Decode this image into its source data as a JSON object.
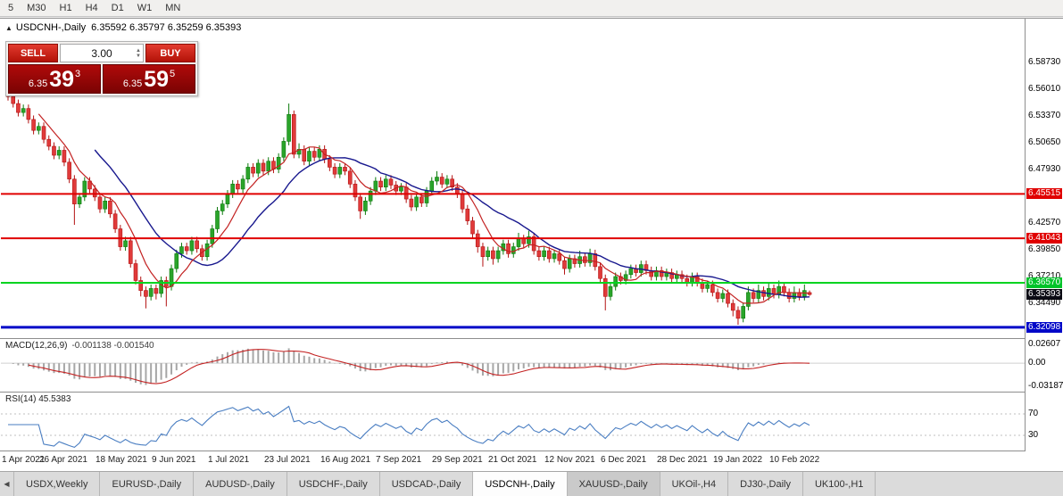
{
  "toolbar": {
    "timeframes": [
      "5",
      "M30",
      "H1",
      "H4",
      "D1",
      "W1",
      "MN"
    ]
  },
  "chart_header": {
    "expand_icon": "▲",
    "symbol": "USDCNH-,Daily",
    "ohlc": "6.35592 6.35797 6.35259 6.35393"
  },
  "trade_panel": {
    "sell_button": "SELL",
    "buy_button": "BUY",
    "volume": "3.00",
    "sell_price_small": "6.35",
    "sell_price_big": "39",
    "sell_price_sup": "3",
    "buy_price_small": "6.35",
    "buy_price_big": "59",
    "buy_price_sup": "5"
  },
  "tabs": [
    {
      "label": "USDX,Weekly",
      "state": "normal"
    },
    {
      "label": "EURUSD-,Daily",
      "state": "normal"
    },
    {
      "label": "AUDUSD-,Daily",
      "state": "normal"
    },
    {
      "label": "USDCHF-,Daily",
      "state": "normal"
    },
    {
      "label": "USDCAD-,Daily",
      "state": "normal"
    },
    {
      "label": "USDCNH-,Daily",
      "state": "active"
    },
    {
      "label": "XAUUSD-,Daily",
      "state": "shaded"
    },
    {
      "label": "UKOil-,H4",
      "state": "normal"
    },
    {
      "label": "DJ30-,Daily",
      "state": "normal"
    },
    {
      "label": "UK100-,H1",
      "state": "normal"
    }
  ],
  "chart_data": {
    "type": "candlestick",
    "symbol": "USDCNH",
    "period": "Daily",
    "display_ohlc": {
      "open": "6.35592",
      "high": "6.35797",
      "low": "6.35259",
      "close": "6.35393"
    },
    "y_range": [
      6.311,
      6.6304
    ],
    "candle_colors": {
      "up": "#2aa42a",
      "up_border": "#0b7a0b",
      "down": "#e03a3a",
      "down_border": "#b31212"
    },
    "ma_colors": {
      "fast": "#c32222",
      "slow": "#18188e"
    },
    "price_axis": [
      {
        "text": "6.58730",
        "style": "plain"
      },
      {
        "text": "6.56010",
        "style": "plain"
      },
      {
        "text": "6.53370",
        "style": "plain"
      },
      {
        "text": "6.50650",
        "style": "plain"
      },
      {
        "text": "6.47930",
        "style": "plain"
      },
      {
        "text": "6.45515",
        "style": "red"
      },
      {
        "text": "6.42570",
        "style": "plain"
      },
      {
        "text": "6.41043",
        "style": "red"
      },
      {
        "text": "6.39850",
        "style": "plain"
      },
      {
        "text": "6.37210",
        "style": "plain"
      },
      {
        "text": "6.36570",
        "style": "green"
      },
      {
        "text": "6.35393",
        "style": "current"
      },
      {
        "text": "6.34490",
        "style": "plain"
      },
      {
        "text": "6.32098",
        "style": "blue"
      }
    ],
    "levels": [
      {
        "price": 6.45515,
        "color": "#e00000",
        "width": 2
      },
      {
        "price": 6.41043,
        "color": "#e00000",
        "width": 2
      },
      {
        "price": 6.3657,
        "color": "#00d41f",
        "width": 2
      },
      {
        "price": 6.32098,
        "color": "#0008c8",
        "width": 3
      }
    ],
    "date_labels": [
      {
        "i": 0,
        "text": "1 Apr 2021"
      },
      {
        "i": 11,
        "text": "26 Apr 2021"
      },
      {
        "i": 22,
        "text": "18 May 2021"
      },
      {
        "i": 33,
        "text": "9 Jun 2021"
      },
      {
        "i": 44,
        "text": "1 Jul 2021"
      },
      {
        "i": 55,
        "text": "23 Jul 2021"
      },
      {
        "i": 66,
        "text": "16 Aug 2021"
      },
      {
        "i": 77,
        "text": "7 Sep 2021"
      },
      {
        "i": 88,
        "text": "29 Sep 2021"
      },
      {
        "i": 99,
        "text": "21 Oct 2021"
      },
      {
        "i": 110,
        "text": "12 Nov 2021"
      },
      {
        "i": 121,
        "text": "6 Dec 2021"
      },
      {
        "i": 132,
        "text": "28 Dec 2021"
      },
      {
        "i": 143,
        "text": "19 Jan 2022"
      },
      {
        "i": 154,
        "text": "10 Feb 2022"
      }
    ],
    "indicators": {
      "macd": {
        "label": "MACD(12,26,9)",
        "values": "-0.001138 -0.001540",
        "axis": [
          {
            "text": "0.02607",
            "v": 0.02607
          },
          {
            "text": "0.00",
            "v": 0
          },
          {
            "text": "-0.03187",
            "v": -0.03187
          }
        ],
        "range": [
          -0.038,
          0.0335
        ],
        "histogram_color": "#a6a6a6",
        "signal_color": "#c32222"
      },
      "rsi": {
        "label": "RSI(14) 45.5383",
        "axis": [
          {
            "text": "70",
            "v": 70
          },
          {
            "text": "30",
            "v": 30
          }
        ],
        "levels": [
          70,
          30
        ],
        "line_color": "#4a7ec2"
      }
    },
    "candles": [
      [
        6.558,
        6.566,
        6.549,
        6.553
      ],
      [
        6.553,
        6.557,
        6.542,
        6.546
      ],
      [
        6.546,
        6.55,
        6.533,
        6.537
      ],
      [
        6.537,
        6.545,
        6.533,
        6.541
      ],
      [
        6.541,
        6.545,
        6.526,
        6.53
      ],
      [
        6.53,
        6.534,
        6.515,
        6.519
      ],
      [
        6.519,
        6.527,
        6.515,
        6.523
      ],
      [
        6.523,
        6.527,
        6.506,
        6.51
      ],
      [
        6.51,
        6.514,
        6.499,
        6.503
      ],
      [
        6.503,
        6.507,
        6.49,
        6.494
      ],
      [
        6.494,
        6.503,
        6.49,
        6.499
      ],
      [
        6.499,
        6.503,
        6.483,
        6.487
      ],
      [
        6.487,
        6.491,
        6.466,
        6.47
      ],
      [
        6.47,
        6.474,
        6.424,
        6.445
      ],
      [
        6.445,
        6.456,
        6.441,
        6.452
      ],
      [
        6.452,
        6.472,
        6.448,
        6.468
      ],
      [
        6.468,
        6.472,
        6.456,
        6.46
      ],
      [
        6.46,
        6.464,
        6.448,
        6.452
      ],
      [
        6.452,
        6.456,
        6.436,
        6.44
      ],
      [
        6.44,
        6.452,
        6.436,
        6.448
      ],
      [
        6.448,
        6.452,
        6.431,
        6.435
      ],
      [
        6.435,
        6.439,
        6.416,
        6.42
      ],
      [
        6.42,
        6.424,
        6.398,
        6.402
      ],
      [
        6.402,
        6.412,
        6.398,
        6.408
      ],
      [
        6.408,
        6.412,
        6.381,
        6.385
      ],
      [
        6.385,
        6.389,
        6.364,
        6.368
      ],
      [
        6.368,
        6.372,
        6.352,
        6.358
      ],
      [
        6.358,
        6.362,
        6.34,
        6.352
      ],
      [
        6.352,
        6.364,
        6.348,
        6.36
      ],
      [
        6.36,
        6.364,
        6.349,
        6.355
      ],
      [
        6.355,
        6.372,
        6.351,
        6.368
      ],
      [
        6.368,
        6.372,
        6.342,
        6.362
      ],
      [
        6.362,
        6.384,
        6.358,
        6.38
      ],
      [
        6.38,
        6.399,
        6.376,
        6.395
      ],
      [
        6.395,
        6.406,
        6.391,
        6.402
      ],
      [
        6.402,
        6.406,
        6.394,
        6.398
      ],
      [
        6.398,
        6.412,
        6.394,
        6.408
      ],
      [
        6.408,
        6.412,
        6.396,
        6.4
      ],
      [
        6.4,
        6.404,
        6.388,
        6.392
      ],
      [
        6.392,
        6.409,
        6.388,
        6.405
      ],
      [
        6.405,
        6.424,
        6.401,
        6.42
      ],
      [
        6.42,
        6.442,
        6.416,
        6.438
      ],
      [
        6.438,
        6.449,
        6.434,
        6.445
      ],
      [
        6.445,
        6.459,
        6.441,
        6.455
      ],
      [
        6.455,
        6.469,
        6.451,
        6.465
      ],
      [
        6.465,
        6.469,
        6.456,
        6.46
      ],
      [
        6.46,
        6.474,
        6.456,
        6.47
      ],
      [
        6.47,
        6.486,
        6.466,
        6.482
      ],
      [
        6.482,
        6.486,
        6.472,
        6.476
      ],
      [
        6.476,
        6.49,
        6.472,
        6.486
      ],
      [
        6.486,
        6.49,
        6.474,
        6.478
      ],
      [
        6.478,
        6.492,
        6.474,
        6.488
      ],
      [
        6.488,
        6.492,
        6.476,
        6.48
      ],
      [
        6.48,
        6.496,
        6.476,
        6.492
      ],
      [
        6.492,
        6.512,
        6.488,
        6.508
      ],
      [
        6.508,
        6.546,
        6.504,
        6.535
      ],
      [
        6.535,
        6.539,
        6.491,
        6.495
      ],
      [
        6.495,
        6.506,
        6.491,
        6.5
      ],
      [
        6.5,
        6.504,
        6.484,
        6.488
      ],
      [
        6.488,
        6.502,
        6.484,
        6.498
      ],
      [
        6.498,
        6.502,
        6.488,
        6.492
      ],
      [
        6.492,
        6.504,
        6.488,
        6.5
      ],
      [
        6.5,
        6.504,
        6.486,
        6.49
      ],
      [
        6.49,
        6.494,
        6.478,
        6.482
      ],
      [
        6.482,
        6.486,
        6.471,
        6.475
      ],
      [
        6.475,
        6.486,
        6.471,
        6.482
      ],
      [
        6.482,
        6.486,
        6.474,
        6.478
      ],
      [
        6.478,
        6.482,
        6.461,
        6.465
      ],
      [
        6.465,
        6.469,
        6.448,
        6.452
      ],
      [
        6.452,
        6.456,
        6.43,
        6.438
      ],
      [
        6.438,
        6.452,
        6.434,
        6.448
      ],
      [
        6.448,
        6.462,
        6.444,
        6.458
      ],
      [
        6.458,
        6.472,
        6.454,
        6.468
      ],
      [
        6.468,
        6.472,
        6.458,
        6.462
      ],
      [
        6.462,
        6.474,
        6.458,
        6.47
      ],
      [
        6.47,
        6.474,
        6.46,
        6.464
      ],
      [
        6.464,
        6.468,
        6.454,
        6.458
      ],
      [
        6.458,
        6.466,
        6.454,
        6.462
      ],
      [
        6.462,
        6.466,
        6.446,
        6.45
      ],
      [
        6.45,
        6.454,
        6.438,
        6.442
      ],
      [
        6.442,
        6.456,
        6.438,
        6.452
      ],
      [
        6.452,
        6.456,
        6.442,
        6.446
      ],
      [
        6.446,
        6.462,
        6.442,
        6.458
      ],
      [
        6.458,
        6.472,
        6.454,
        6.468
      ],
      [
        6.468,
        6.478,
        6.464,
        6.472
      ],
      [
        6.472,
        6.476,
        6.461,
        6.465
      ],
      [
        6.465,
        6.474,
        6.461,
        6.47
      ],
      [
        6.47,
        6.474,
        6.458,
        6.462
      ],
      [
        6.462,
        6.466,
        6.451,
        6.455
      ],
      [
        6.455,
        6.459,
        6.436,
        6.44
      ],
      [
        6.44,
        6.444,
        6.424,
        6.428
      ],
      [
        6.428,
        6.432,
        6.411,
        6.415
      ],
      [
        6.415,
        6.419,
        6.396,
        6.402
      ],
      [
        6.402,
        6.406,
        6.382,
        6.392
      ],
      [
        6.392,
        6.402,
        6.388,
        6.398
      ],
      [
        6.398,
        6.402,
        6.384,
        6.39
      ],
      [
        6.39,
        6.402,
        6.386,
        6.398
      ],
      [
        6.398,
        6.409,
        6.394,
        6.405
      ],
      [
        6.405,
        6.409,
        6.391,
        6.395
      ],
      [
        6.395,
        6.406,
        6.391,
        6.402
      ],
      [
        6.402,
        6.416,
        6.398,
        6.41
      ],
      [
        6.41,
        6.414,
        6.401,
        6.405
      ],
      [
        6.405,
        6.418,
        6.401,
        6.412
      ],
      [
        6.412,
        6.416,
        6.394,
        6.398
      ],
      [
        6.398,
        6.402,
        6.388,
        6.392
      ],
      [
        6.392,
        6.402,
        6.388,
        6.398
      ],
      [
        6.398,
        6.402,
        6.386,
        6.39
      ],
      [
        6.39,
        6.399,
        6.386,
        6.395
      ],
      [
        6.395,
        6.399,
        6.384,
        6.388
      ],
      [
        6.388,
        6.392,
        6.374,
        6.38
      ],
      [
        6.38,
        6.394,
        6.376,
        6.39
      ],
      [
        6.39,
        6.394,
        6.381,
        6.385
      ],
      [
        6.385,
        6.398,
        6.381,
        6.392
      ],
      [
        6.392,
        6.396,
        6.382,
        6.386
      ],
      [
        6.386,
        6.4,
        6.382,
        6.395
      ],
      [
        6.395,
        6.399,
        6.378,
        6.382
      ],
      [
        6.382,
        6.386,
        6.366,
        6.37
      ],
      [
        6.37,
        6.374,
        6.338,
        6.352
      ],
      [
        6.352,
        6.366,
        6.348,
        6.362
      ],
      [
        6.362,
        6.376,
        6.358,
        6.372
      ],
      [
        6.372,
        6.376,
        6.364,
        6.368
      ],
      [
        6.368,
        6.378,
        6.364,
        6.374
      ],
      [
        6.374,
        6.384,
        6.37,
        6.38
      ],
      [
        6.38,
        6.384,
        6.372,
        6.376
      ],
      [
        6.376,
        6.388,
        6.372,
        6.384
      ],
      [
        6.384,
        6.388,
        6.374,
        6.378
      ],
      [
        6.378,
        6.382,
        6.368,
        6.372
      ],
      [
        6.372,
        6.382,
        6.368,
        6.378
      ],
      [
        6.378,
        6.382,
        6.368,
        6.372
      ],
      [
        6.372,
        6.38,
        6.368,
        6.376
      ],
      [
        6.376,
        6.38,
        6.366,
        6.37
      ],
      [
        6.37,
        6.378,
        6.366,
        6.374
      ],
      [
        6.374,
        6.378,
        6.366,
        6.37
      ],
      [
        6.37,
        6.374,
        6.362,
        6.366
      ],
      [
        6.366,
        6.376,
        6.362,
        6.372
      ],
      [
        6.372,
        6.376,
        6.362,
        6.366
      ],
      [
        6.366,
        6.37,
        6.356,
        6.36
      ],
      [
        6.36,
        6.368,
        6.356,
        6.364
      ],
      [
        6.364,
        6.368,
        6.352,
        6.356
      ],
      [
        6.356,
        6.36,
        6.346,
        6.35
      ],
      [
        6.35,
        6.359,
        6.346,
        6.355
      ],
      [
        6.355,
        6.359,
        6.341,
        6.345
      ],
      [
        6.345,
        6.349,
        6.332,
        6.338
      ],
      [
        6.338,
        6.342,
        6.3235,
        6.33
      ],
      [
        6.33,
        6.346,
        6.326,
        6.342
      ],
      [
        6.342,
        6.362,
        6.338,
        6.356
      ],
      [
        6.356,
        6.36,
        6.346,
        6.35
      ],
      [
        6.35,
        6.364,
        6.346,
        6.358
      ],
      [
        6.358,
        6.362,
        6.348,
        6.352
      ],
      [
        6.352,
        6.366,
        6.348,
        6.36
      ],
      [
        6.36,
        6.364,
        6.35,
        6.354
      ],
      [
        6.354,
        6.368,
        6.35,
        6.362
      ],
      [
        6.362,
        6.366,
        6.352,
        6.356
      ],
      [
        6.356,
        6.36,
        6.346,
        6.35
      ],
      [
        6.35,
        6.362,
        6.346,
        6.356
      ],
      [
        6.356,
        6.36,
        6.348,
        6.352
      ],
      [
        6.352,
        6.364,
        6.348,
        6.358
      ],
      [
        6.35592,
        6.35797,
        6.35259,
        6.35393
      ]
    ]
  }
}
